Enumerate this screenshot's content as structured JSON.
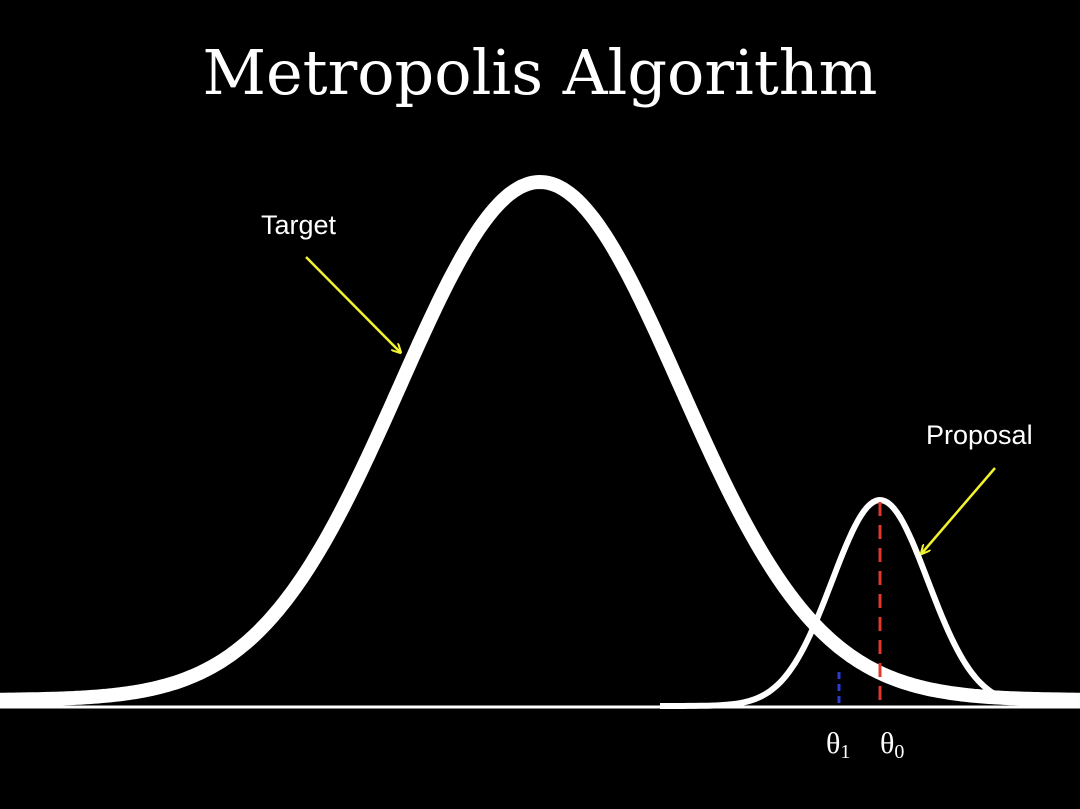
{
  "title": "Metropolis Algorithm",
  "labels": {
    "target": "Target",
    "proposal": "Proposal"
  },
  "theta": {
    "symbol": "θ",
    "theta1_sub": "1",
    "theta0_sub": "0"
  },
  "colors": {
    "background": "#000000",
    "curve": "#ffffff",
    "arrow": "#f2f230",
    "theta0_line": "#e0392b",
    "theta1_line": "#2a3bd6"
  },
  "diagram": {
    "target_distribution": {
      "shape": "gaussian",
      "relative_mean": "left-center",
      "relative_height": 1.0
    },
    "proposal_distribution": {
      "shape": "gaussian",
      "centered_at": "θ0",
      "relative_height": 0.39
    },
    "markers": [
      {
        "name": "θ0",
        "style": "red dashed vertical line"
      },
      {
        "name": "θ1",
        "style": "blue dashed vertical line"
      }
    ]
  }
}
